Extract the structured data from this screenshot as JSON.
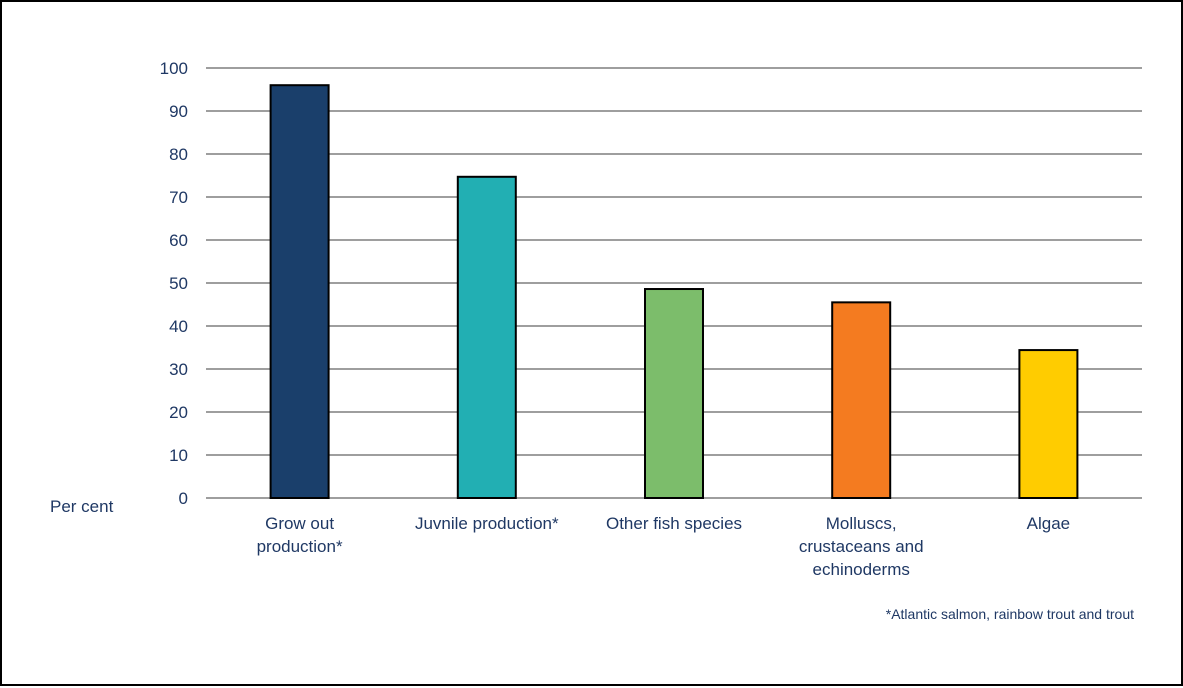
{
  "chart_data": {
    "type": "bar",
    "ylabel": "Per cent",
    "ylim": [
      0,
      100
    ],
    "yticks": [
      0,
      10,
      20,
      30,
      40,
      50,
      60,
      70,
      80,
      90,
      100
    ],
    "grid": true,
    "categories": [
      "Grow out production*",
      "Juvnile production*",
      "Other fish species",
      "Molluscs, crustaceans and echinoderms",
      "Algae"
    ],
    "category_lines": [
      [
        "Grow out",
        "production*"
      ],
      [
        "Juvnile production*"
      ],
      [
        "Other fish species"
      ],
      [
        "Molluscs,",
        "crustaceans and",
        "echinoderms"
      ],
      [
        "Algae"
      ]
    ],
    "values": [
      96,
      74.7,
      48.6,
      45.5,
      34.4
    ],
    "colors": [
      "#1a3f6b",
      "#22afb3",
      "#7cbd6b",
      "#f47b20",
      "#ffcc00"
    ],
    "note": "*Atlantic salmon, rainbow trout and trout"
  }
}
